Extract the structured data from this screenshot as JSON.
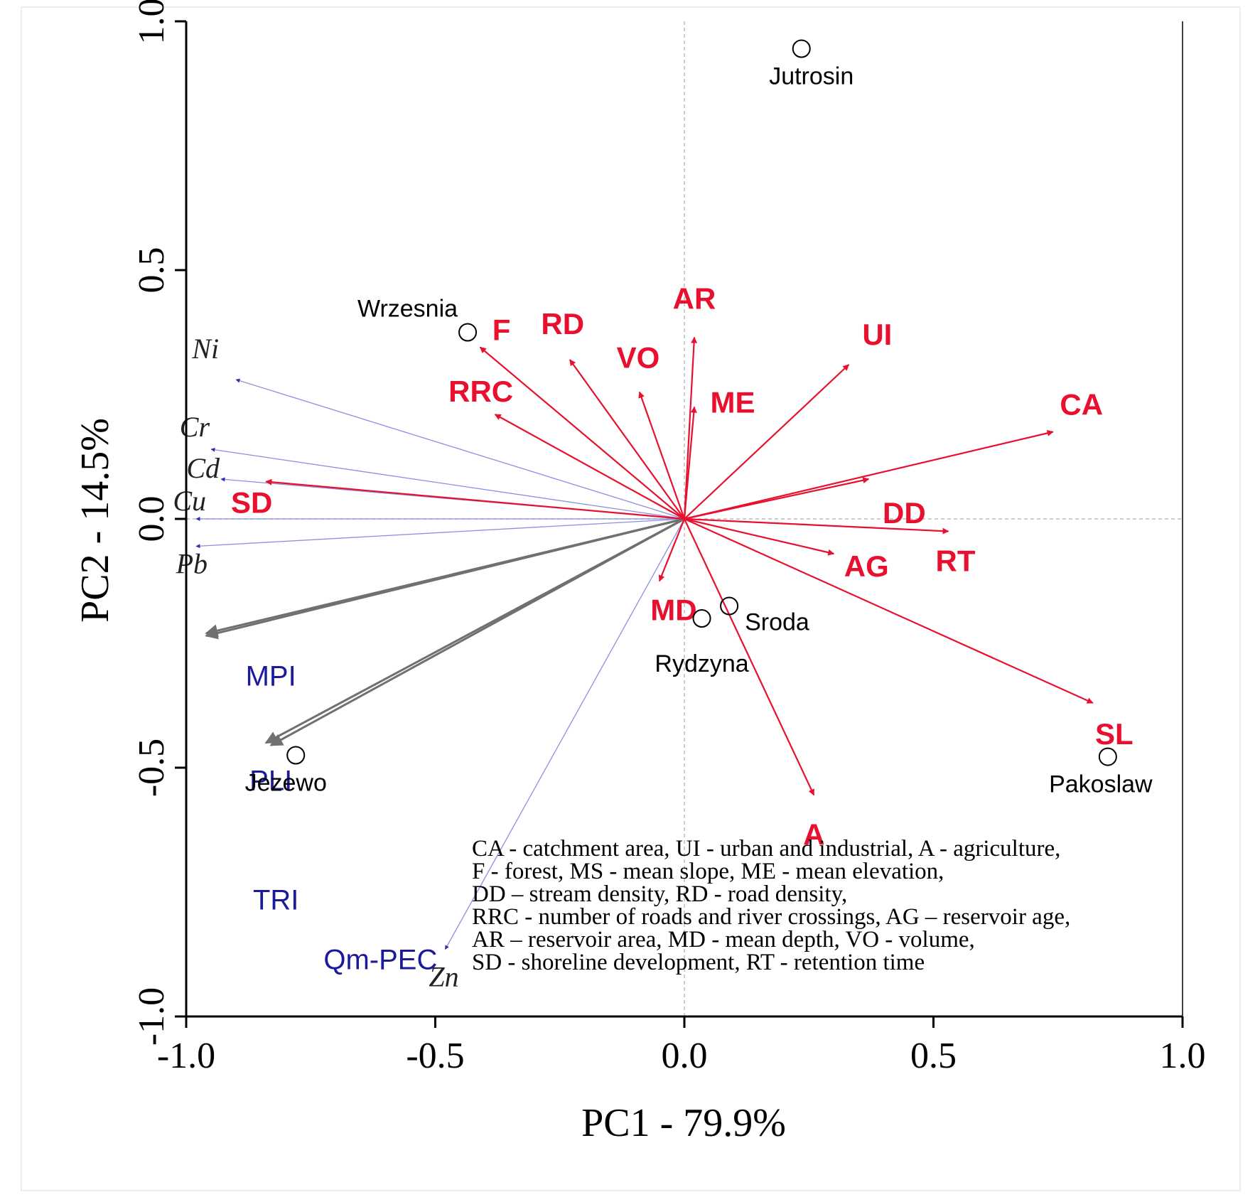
{
  "chart_data": {
    "type": "scatter",
    "subtype": "pca-biplot",
    "xlabel": "PC1 - 79.9%",
    "ylabel": "PC2 - 14.5%",
    "xlim": [
      -1.0,
      1.0
    ],
    "ylim": [
      -1.0,
      1.0
    ],
    "xticks": [
      -1.0,
      -0.5,
      0.0,
      0.5,
      1.0
    ],
    "yticks": [
      -1.0,
      -0.5,
      0.0,
      0.5,
      1.0
    ],
    "xtick_labels": [
      "-1.0",
      "-0.5",
      "0.0",
      "0.5",
      "1.0"
    ],
    "ytick_labels": [
      "-1.0",
      "-0.5",
      "0.0",
      "0.5",
      "1.0"
    ],
    "colors": {
      "catchment_vectors": "#e8102e",
      "metal_vectors": "#8a8fdf",
      "metal_text": "#222222",
      "index_vectors": "#707070",
      "index_text": "#1a1a9a",
      "sites": "#000000",
      "reference_lines": "#bbbbbb"
    },
    "metal_vectors": [
      {
        "label": "Ni",
        "x": -0.9,
        "y": 0.28
      },
      {
        "label": "Cr",
        "x": -0.95,
        "y": 0.14
      },
      {
        "label": "Cd",
        "x": -0.93,
        "y": 0.08
      },
      {
        "label": "Cu",
        "x": -0.98,
        "y": 0.0
      },
      {
        "label": "Pb",
        "x": -0.98,
        "y": -0.055
      },
      {
        "label": "Zn",
        "x": -0.48,
        "y": -0.865
      }
    ],
    "index_vectors": [
      {
        "label": "MPI",
        "x": -0.96,
        "y": -0.23
      },
      {
        "label": "PLI",
        "x": -0.96,
        "y": -0.235
      },
      {
        "label": "TRI",
        "x": -0.84,
        "y": -0.45
      },
      {
        "label": "Qm-PEC",
        "x": -0.83,
        "y": -0.455
      }
    ],
    "catchment_vectors": [
      {
        "label": "F",
        "x": -0.41,
        "y": 0.345
      },
      {
        "label": "RD",
        "x": -0.23,
        "y": 0.32
      },
      {
        "label": "AR",
        "x": 0.02,
        "y": 0.365
      },
      {
        "label": "VO",
        "x": -0.09,
        "y": 0.255
      },
      {
        "label": "ME",
        "x": 0.02,
        "y": 0.225
      },
      {
        "label": "UI",
        "x": 0.33,
        "y": 0.31
      },
      {
        "label": "RRC",
        "x": -0.38,
        "y": 0.21
      },
      {
        "label": "CA",
        "x": 0.74,
        "y": 0.175
      },
      {
        "label": "DD",
        "x": 0.37,
        "y": 0.08
      },
      {
        "label": "SD",
        "x": -0.84,
        "y": 0.075
      },
      {
        "label": "RT",
        "x": 0.53,
        "y": -0.025
      },
      {
        "label": "AG",
        "x": 0.3,
        "y": -0.07
      },
      {
        "label": "MD",
        "x": -0.05,
        "y": -0.125
      },
      {
        "label": "SL",
        "x": 0.82,
        "y": -0.37
      },
      {
        "label": "A",
        "x": 0.26,
        "y": -0.555
      }
    ],
    "sites": [
      {
        "label": "Jutrosin",
        "x": 0.235,
        "y": 0.945
      },
      {
        "label": "Wrzesnia",
        "x": -0.435,
        "y": 0.375
      },
      {
        "label": "Sroda",
        "x": 0.09,
        "y": -0.175
      },
      {
        "label": "Rydzyna",
        "x": 0.035,
        "y": -0.2
      },
      {
        "label": "Jezewo",
        "x": -0.78,
        "y": -0.475
      },
      {
        "label": "Pakoslaw",
        "x": 0.85,
        "y": -0.478
      }
    ],
    "legend_lines": [
      "CA - catchment area, UI - urban and industrial, A - agriculture,",
      "F - forest, MS - mean slope, ME - mean elevation,",
      "DD – stream density, RD - road density,",
      "RRC - number of roads and river crossings, AG – reservoir age,",
      "AR – reservoir area, MD - mean depth, VO - volume,",
      "SD - shoreline development, RT - retention time"
    ]
  }
}
